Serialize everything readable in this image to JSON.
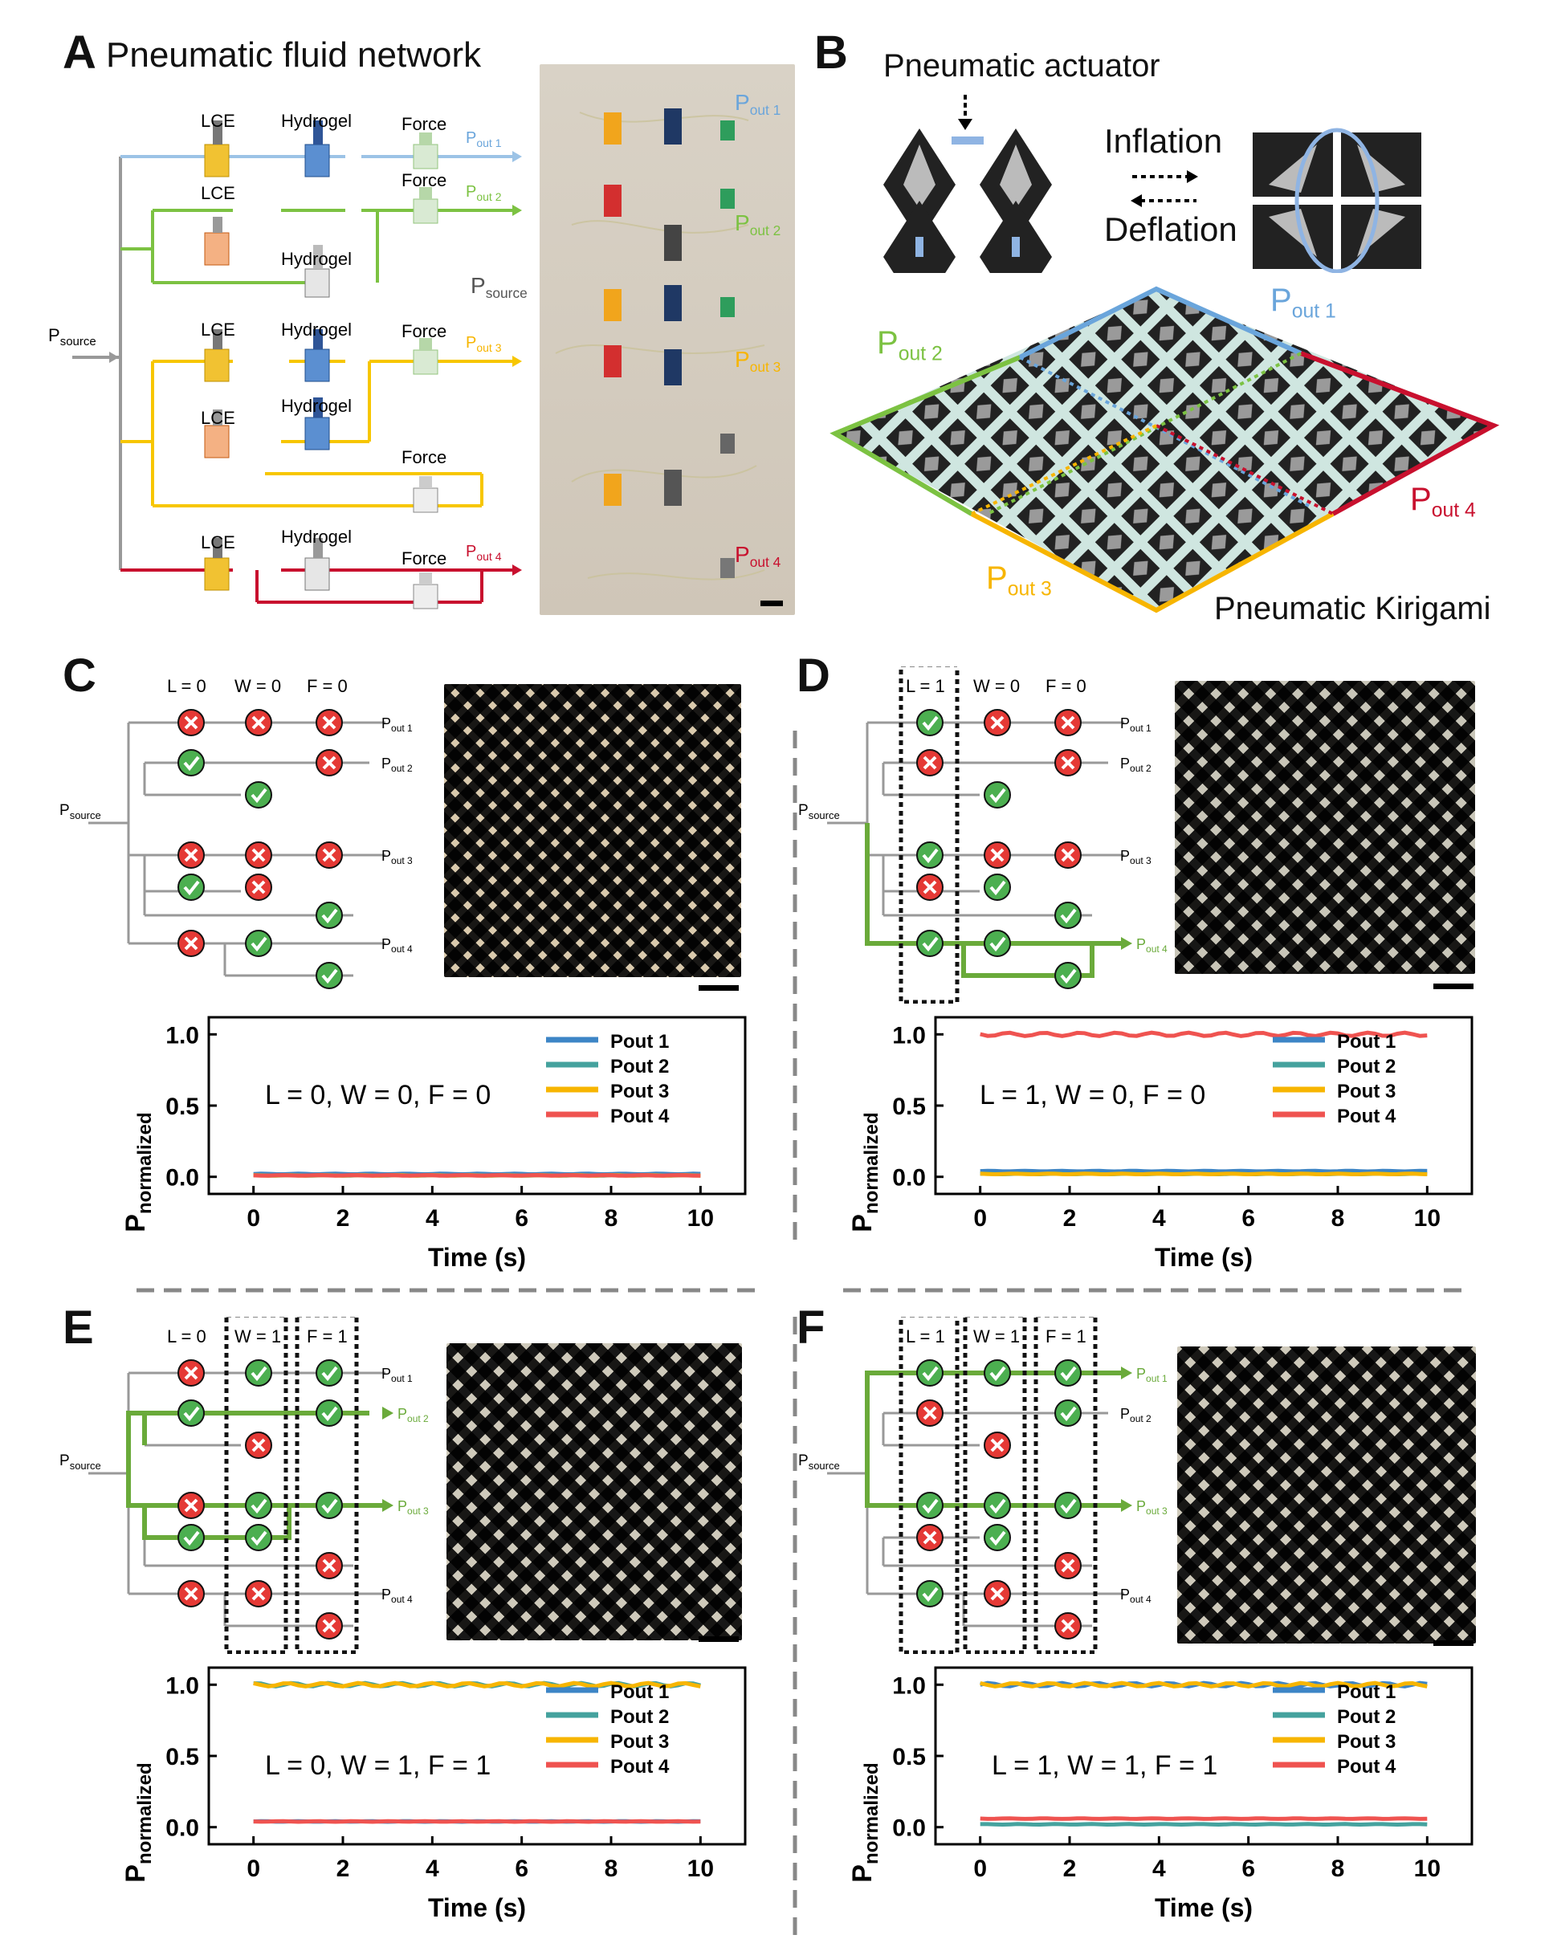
{
  "panels": {
    "A": {
      "letter": "A",
      "title": "Pneumatic fluid network",
      "psource": "P",
      "psource_sub": "source",
      "lce": "LCE",
      "hydrogel": "Hydrogel",
      "force": "Force",
      "p": "P",
      "out1": "out 1",
      "out2": "out 2",
      "out3": "out 3",
      "out4": "out 4",
      "photo_psource_sub": "source"
    },
    "B": {
      "letter": "B",
      "title": "Pneumatic actuator",
      "inflation": "Inflation",
      "deflation": "Deflation",
      "kirigami": "Pneumatic Kirigami",
      "p": "P",
      "out1": "out 1",
      "out2": "out 2",
      "out3": "out 3",
      "out4": "out 4"
    },
    "C": {
      "letter": "C",
      "header": [
        "L = 0",
        "W = 0",
        "F = 0"
      ],
      "state": "L = 0, W = 0, F = 0"
    },
    "D": {
      "letter": "D",
      "header": [
        "L = 1",
        "W = 0",
        "F = 0"
      ],
      "state": "L = 1, W = 0, F = 0"
    },
    "E": {
      "letter": "E",
      "header": [
        "L = 0",
        "W = 1",
        "F = 1"
      ],
      "state": "L = 0, W = 1, F = 1"
    },
    "F": {
      "letter": "F",
      "header": [
        "L = 1",
        "W = 1",
        "F = 1"
      ],
      "state": "L = 1, W = 1, F = 1"
    }
  },
  "circuit": {
    "psource": "P",
    "psource_sub": "source",
    "p": "P",
    "out1": "out 1",
    "out2": "out 2",
    "out3": "out 3",
    "out4": "out 4"
  },
  "colors": {
    "out1": "#6aa5db",
    "out2": "#7cc242",
    "out3": "#f7b500",
    "out4": "#c8102e",
    "green_path": "#6aaa3a",
    "ok": "#4caf50",
    "bad": "#e53935"
  },
  "chart_data": [
    {
      "type": "line",
      "panel": "C",
      "xlabel": "Time (s)",
      "ylabel": "P",
      "ylabel_sub": "normalized",
      "xlim": [
        -1,
        11
      ],
      "ylim": [
        -0.12,
        1.12
      ],
      "xticks": [
        0,
        2,
        4,
        6,
        8,
        10
      ],
      "yticks": [
        "0.0",
        "0.5",
        "1.0"
      ],
      "series": [
        {
          "name": "Pout 1",
          "color": "#3d85c6",
          "x": [
            0,
            10
          ],
          "values": [
            0.02,
            0.02
          ]
        },
        {
          "name": "Pout 2",
          "color": "#45a29e",
          "x": [
            0,
            10
          ],
          "values": [
            0.01,
            0.01
          ]
        },
        {
          "name": "Pout 3",
          "color": "#f7b500",
          "x": [
            0,
            10
          ],
          "values": [
            0.01,
            0.01
          ]
        },
        {
          "name": "Pout 4",
          "color": "#ef5350",
          "x": [
            0,
            10
          ],
          "values": [
            0.01,
            0.01
          ]
        }
      ]
    },
    {
      "type": "line",
      "panel": "D",
      "xlabel": "Time (s)",
      "ylabel": "P",
      "ylabel_sub": "normalized",
      "xlim": [
        -1,
        11
      ],
      "ylim": [
        -0.12,
        1.12
      ],
      "xticks": [
        0,
        2,
        4,
        6,
        8,
        10
      ],
      "yticks": [
        "0.0",
        "0.5",
        "1.0"
      ],
      "series": [
        {
          "name": "Pout 1",
          "color": "#3d85c6",
          "x": [
            0,
            10
          ],
          "values": [
            0.04,
            0.04
          ]
        },
        {
          "name": "Pout 2",
          "color": "#45a29e",
          "x": [
            0,
            10
          ],
          "values": [
            0.02,
            0.02
          ]
        },
        {
          "name": "Pout 3",
          "color": "#f7b500",
          "x": [
            0,
            10
          ],
          "values": [
            0.02,
            0.02
          ]
        },
        {
          "name": "Pout 4",
          "color": "#ef5350",
          "x": [
            0,
            10
          ],
          "values": [
            1.0,
            1.0
          ]
        }
      ]
    },
    {
      "type": "line",
      "panel": "E",
      "xlabel": "Time (s)",
      "ylabel": "P",
      "ylabel_sub": "normalized",
      "xlim": [
        -1,
        11
      ],
      "ylim": [
        -0.12,
        1.12
      ],
      "xticks": [
        0,
        2,
        4,
        6,
        8,
        10
      ],
      "yticks": [
        "0.0",
        "0.5",
        "1.0"
      ],
      "series": [
        {
          "name": "Pout 1",
          "color": "#3d85c6",
          "x": [
            0,
            10
          ],
          "values": [
            0.04,
            0.04
          ]
        },
        {
          "name": "Pout 2",
          "color": "#45a29e",
          "x": [
            0,
            10
          ],
          "values": [
            1.0,
            1.0
          ]
        },
        {
          "name": "Pout 3",
          "color": "#f7b500",
          "x": [
            0,
            10
          ],
          "values": [
            1.0,
            1.0
          ]
        },
        {
          "name": "Pout 4",
          "color": "#ef5350",
          "x": [
            0,
            10
          ],
          "values": [
            0.04,
            0.04
          ]
        }
      ]
    },
    {
      "type": "line",
      "panel": "F",
      "xlabel": "Time (s)",
      "ylabel": "P",
      "ylabel_sub": "normalized",
      "xlim": [
        -1,
        11
      ],
      "ylim": [
        -0.12,
        1.12
      ],
      "xticks": [
        0,
        2,
        4,
        6,
        8,
        10
      ],
      "yticks": [
        "0.0",
        "0.5",
        "1.0"
      ],
      "series": [
        {
          "name": "Pout 1",
          "color": "#3d85c6",
          "x": [
            0,
            10
          ],
          "values": [
            1.0,
            1.0
          ]
        },
        {
          "name": "Pout 2",
          "color": "#45a29e",
          "x": [
            0,
            10
          ],
          "values": [
            0.02,
            0.02
          ]
        },
        {
          "name": "Pout 3",
          "color": "#f7b500",
          "x": [
            0,
            10
          ],
          "values": [
            1.0,
            1.0
          ]
        },
        {
          "name": "Pout 4",
          "color": "#ef5350",
          "x": [
            0,
            10
          ],
          "values": [
            0.06,
            0.06
          ]
        }
      ]
    }
  ]
}
